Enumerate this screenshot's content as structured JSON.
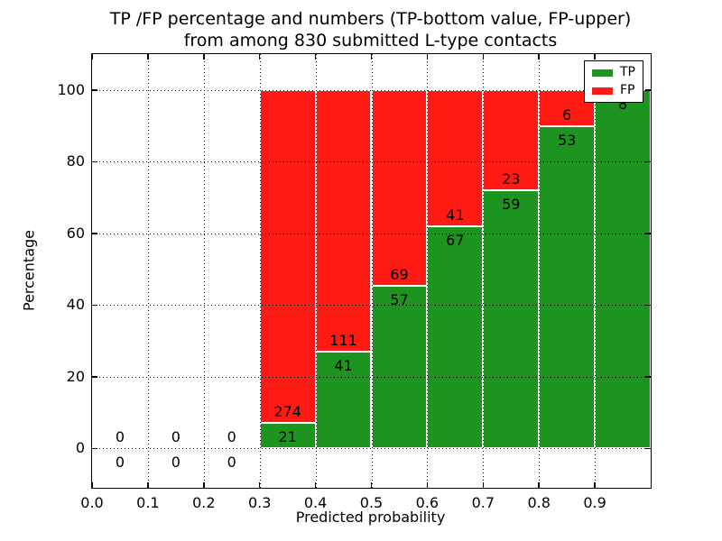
{
  "title": {
    "line1": "TP /FP percentage and numbers (TP-bottom value, FP-upper)",
    "line2": "from among 830 submitted L-type contacts"
  },
  "chart_data": {
    "type": "bar",
    "stacked": true,
    "title_lines": [
      "TP /FP percentage and numbers (TP-bottom value, FP-upper)",
      "from among 830 submitted L-type contacts"
    ],
    "total_submitted": 830,
    "xlabel": "Predicted probability",
    "ylabel": "Percentage",
    "xlim": [
      0.0,
      1.0
    ],
    "ylim": [
      -11,
      110
    ],
    "x_ticks": [
      0.0,
      0.1,
      0.2,
      0.3,
      0.4,
      0.5,
      0.6,
      0.7,
      0.8,
      0.9
    ],
    "x_tick_labels": [
      "0.0",
      "0.1",
      "0.2",
      "0.3",
      "0.4",
      "0.5",
      "0.6",
      "0.7",
      "0.8",
      "0.9"
    ],
    "y_ticks": [
      0,
      20,
      40,
      60,
      80,
      100
    ],
    "y_tick_labels": [
      "0",
      "20",
      "40",
      "60",
      "80",
      "100"
    ],
    "grid": "dotted, drawn above bars",
    "legend_position": "upper-right",
    "series": [
      {
        "name": "TP",
        "color": "#1e9420"
      },
      {
        "name": "FP",
        "color": "#ff1a14"
      }
    ],
    "bar_edge_color": "#ffffff",
    "bins": [
      {
        "x_start": 0.0,
        "x_end": 0.1,
        "tp": 0,
        "fp": 0
      },
      {
        "x_start": 0.1,
        "x_end": 0.2,
        "tp": 0,
        "fp": 0
      },
      {
        "x_start": 0.2,
        "x_end": 0.3,
        "tp": 0,
        "fp": 0
      },
      {
        "x_start": 0.3,
        "x_end": 0.4,
        "tp": 21,
        "fp": 274
      },
      {
        "x_start": 0.4,
        "x_end": 0.5,
        "tp": 41,
        "fp": 111
      },
      {
        "x_start": 0.5,
        "x_end": 0.6,
        "tp": 57,
        "fp": 69
      },
      {
        "x_start": 0.6,
        "x_end": 0.7,
        "tp": 67,
        "fp": 41
      },
      {
        "x_start": 0.7,
        "x_end": 0.8,
        "tp": 59,
        "fp": 23
      },
      {
        "x_start": 0.8,
        "x_end": 0.9,
        "tp": 53,
        "fp": 6
      },
      {
        "x_start": 0.9,
        "x_end": 1.0,
        "tp": 8,
        "fp": 0
      }
    ]
  }
}
